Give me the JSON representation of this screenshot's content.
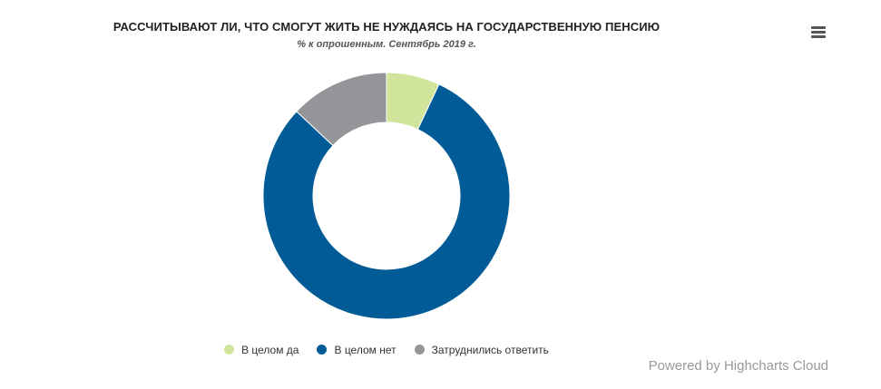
{
  "chart_data": {
    "type": "pie",
    "title": "РАССЧИТЫВАЮТ ЛИ, ЧТО СМОГУТ ЖИТЬ НЕ НУЖДАЯСЬ НА ГОСУДАРСТВЕННУЮ ПЕНСИЮ",
    "subtitle": "% к опрошенным. Сентябрь 2019 г.",
    "donut": true,
    "legend_position": "bottom",
    "series": [
      {
        "data": [
          {
            "name": "В целом да",
            "value": 7,
            "color": "#d0e49b"
          },
          {
            "name": "В целом нет",
            "value": 80,
            "color": "#005b96"
          },
          {
            "name": "Затруднились ответить",
            "value": 13,
            "color": "#939598"
          }
        ]
      }
    ]
  },
  "toolbar": {
    "menu_icon": "hamburger-menu-icon"
  },
  "credits": {
    "text": "Powered by Highcharts Cloud"
  }
}
